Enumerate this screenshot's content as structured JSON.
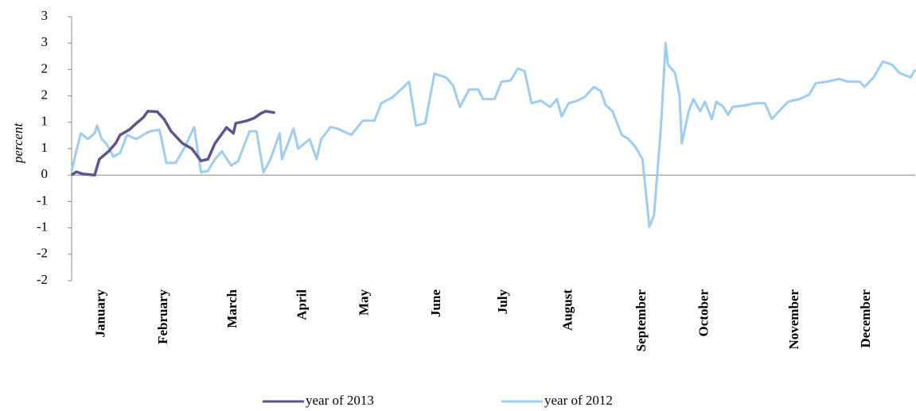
{
  "chart_data": {
    "type": "line",
    "y_label": "percent",
    "xlim": [
      0,
      365
    ],
    "xticks": [
      {
        "value": 13,
        "label": "January"
      },
      {
        "value": 40,
        "label": "February"
      },
      {
        "value": 70,
        "label": "March"
      },
      {
        "value": 100,
        "label": "April"
      },
      {
        "value": 127,
        "label": "May"
      },
      {
        "value": 158,
        "label": "June"
      },
      {
        "value": 187,
        "label": "July"
      },
      {
        "value": 215,
        "label": "August"
      },
      {
        "value": 247,
        "label": "September"
      },
      {
        "value": 274,
        "label": "October"
      },
      {
        "value": 313,
        "label": "November"
      },
      {
        "value": 344,
        "label": "December"
      }
    ],
    "ylim": [
      -2,
      3
    ],
    "yticks": [
      3,
      {
        "value": 2.5,
        "label": "3"
      },
      2,
      {
        "value": 1.5,
        "label": "2"
      },
      1,
      {
        "value": 0.5,
        "label": "1"
      },
      0,
      {
        "value": -0.5,
        "label": "-1"
      },
      -1,
      {
        "value": -1.5,
        "label": "-2"
      },
      -2
    ],
    "legend": "bottom",
    "series": [
      {
        "name": "year of 2013",
        "color": "#5f5490",
        "x": [
          0,
          2,
          5,
          10,
          12,
          16,
          19,
          21,
          25,
          28,
          31,
          33,
          37,
          40,
          43,
          48,
          52,
          56,
          59,
          62,
          67,
          70,
          71,
          76,
          79,
          82,
          84,
          88
        ],
        "values": [
          0,
          0.06,
          0.02,
          0,
          0.3,
          0.45,
          0.6,
          0.76,
          0.86,
          0.98,
          1.09,
          1.21,
          1.2,
          1.06,
          0.83,
          0.6,
          0.5,
          0.27,
          0.3,
          0.6,
          0.9,
          0.79,
          0.98,
          1.03,
          1.08,
          1.17,
          1.21,
          1.18
        ]
      },
      {
        "name": "year of 2012",
        "color": "#9fcdf2",
        "x": [
          0,
          2,
          4,
          7,
          10,
          11,
          13,
          15,
          18,
          21,
          24,
          28,
          31,
          34,
          38,
          41,
          45,
          49,
          53,
          56,
          59,
          62,
          65,
          69,
          72,
          77,
          80,
          83,
          86,
          90,
          91,
          96,
          98,
          103,
          106,
          108,
          112,
          115,
          121,
          126,
          131,
          134,
          139,
          143,
          146,
          149,
          153,
          157,
          162,
          165,
          168,
          172,
          176,
          178,
          183,
          186,
          190,
          193,
          196,
          199,
          203,
          207,
          210,
          212,
          215,
          219,
          222,
          226,
          229,
          231,
          234,
          238,
          241,
          244,
          247,
          250,
          252,
          255,
          257,
          258,
          261,
          263,
          264,
          267,
          269,
          272,
          274,
          277,
          279,
          282,
          284,
          286,
          291,
          296,
          300,
          303,
          306,
          310,
          315,
          319,
          322,
          327,
          332,
          336,
          341,
          343,
          347,
          351,
          355,
          358,
          363,
          365
        ],
        "values": [
          0.08,
          0.45,
          0.79,
          0.68,
          0.79,
          0.94,
          0.68,
          0.6,
          0.35,
          0.42,
          0.76,
          0.68,
          0.76,
          0.83,
          0.86,
          0.23,
          0.23,
          0.53,
          0.91,
          0.05,
          0.08,
          0.3,
          0.45,
          0.18,
          0.26,
          0.83,
          0.83,
          0.05,
          0.3,
          0.79,
          0.3,
          0.88,
          0.5,
          0.68,
          0.3,
          0.68,
          0.91,
          0.88,
          0.76,
          1.03,
          1.03,
          1.36,
          1.48,
          1.64,
          1.77,
          0.94,
          0.98,
          1.92,
          1.85,
          1.7,
          1.29,
          1.62,
          1.62,
          1.44,
          1.44,
          1.77,
          1.79,
          2.02,
          1.97,
          1.36,
          1.41,
          1.29,
          1.44,
          1.11,
          1.36,
          1.41,
          1.48,
          1.67,
          1.59,
          1.33,
          1.21,
          0.76,
          0.68,
          0.53,
          0.3,
          -0.98,
          -0.76,
          0.91,
          2.5,
          2.09,
          1.94,
          1.52,
          0.6,
          1.21,
          1.44,
          1.21,
          1.39,
          1.06,
          1.39,
          1.29,
          1.14,
          1.29,
          1.32,
          1.36,
          1.36,
          1.06,
          1.21,
          1.39,
          1.44,
          1.52,
          1.74,
          1.77,
          1.82,
          1.77,
          1.77,
          1.67,
          1.85,
          2.15,
          2.09,
          1.94,
          1.85,
          2.0
        ]
      }
    ]
  }
}
